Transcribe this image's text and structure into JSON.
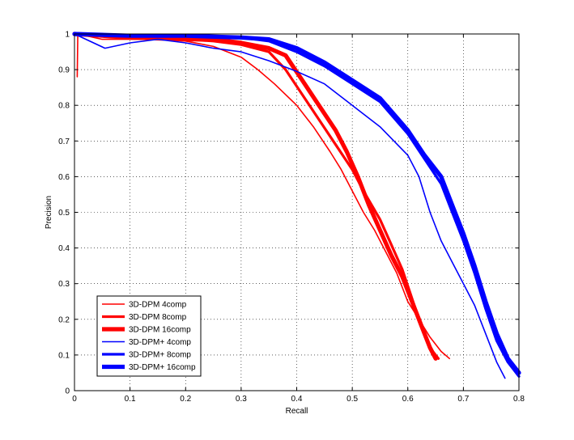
{
  "chart_data": {
    "type": "line",
    "xlabel": "Recall",
    "ylabel": "Precision",
    "xlim": [
      0,
      0.8
    ],
    "ylim": [
      0,
      1
    ],
    "grid": true,
    "legend_position": "bottom-left",
    "x_ticks": [
      "0",
      "0.1",
      "0.2",
      "0.3",
      "0.4",
      "0.5",
      "0.6",
      "0.7",
      "0.8"
    ],
    "y_ticks": [
      "0",
      "0.1",
      "0.2",
      "0.3",
      "0.4",
      "0.5",
      "0.6",
      "0.7",
      "0.8",
      "0.9",
      "1"
    ],
    "series": [
      {
        "name": "3D-DPM 4comp",
        "color": "#ff0000",
        "weight": "thin",
        "points": [
          [
            0.005,
            0.88
          ],
          [
            0.006,
            1.0
          ],
          [
            0.05,
            0.985
          ],
          [
            0.1,
            0.985
          ],
          [
            0.15,
            0.985
          ],
          [
            0.2,
            0.98
          ],
          [
            0.25,
            0.965
          ],
          [
            0.3,
            0.935
          ],
          [
            0.33,
            0.9
          ],
          [
            0.36,
            0.86
          ],
          [
            0.4,
            0.8
          ],
          [
            0.43,
            0.74
          ],
          [
            0.46,
            0.67
          ],
          [
            0.48,
            0.62
          ],
          [
            0.5,
            0.56
          ],
          [
            0.52,
            0.5
          ],
          [
            0.54,
            0.45
          ],
          [
            0.56,
            0.39
          ],
          [
            0.58,
            0.33
          ],
          [
            0.6,
            0.25
          ],
          [
            0.62,
            0.2
          ],
          [
            0.64,
            0.15
          ],
          [
            0.66,
            0.11
          ],
          [
            0.675,
            0.09
          ]
        ]
      },
      {
        "name": "3D-DPM 8comp",
        "color": "#ff0000",
        "weight": "medium",
        "points": [
          [
            0.0,
            1.0
          ],
          [
            0.1,
            0.99
          ],
          [
            0.2,
            0.985
          ],
          [
            0.25,
            0.98
          ],
          [
            0.3,
            0.97
          ],
          [
            0.35,
            0.95
          ],
          [
            0.38,
            0.9
          ],
          [
            0.41,
            0.83
          ],
          [
            0.44,
            0.76
          ],
          [
            0.47,
            0.69
          ],
          [
            0.5,
            0.62
          ],
          [
            0.52,
            0.56
          ],
          [
            0.55,
            0.48
          ],
          [
            0.57,
            0.41
          ],
          [
            0.59,
            0.34
          ],
          [
            0.605,
            0.27
          ],
          [
            0.62,
            0.2
          ],
          [
            0.635,
            0.14
          ],
          [
            0.645,
            0.11
          ],
          [
            0.655,
            0.09
          ]
        ]
      },
      {
        "name": "3D-DPM 16comp",
        "color": "#ff0000",
        "weight": "thick",
        "points": [
          [
            0.0,
            1.0
          ],
          [
            0.1,
            0.99
          ],
          [
            0.2,
            0.985
          ],
          [
            0.25,
            0.985
          ],
          [
            0.3,
            0.975
          ],
          [
            0.35,
            0.96
          ],
          [
            0.38,
            0.94
          ],
          [
            0.41,
            0.87
          ],
          [
            0.44,
            0.8
          ],
          [
            0.47,
            0.73
          ],
          [
            0.49,
            0.67
          ],
          [
            0.51,
            0.6
          ],
          [
            0.53,
            0.52
          ],
          [
            0.55,
            0.45
          ],
          [
            0.57,
            0.38
          ],
          [
            0.59,
            0.32
          ],
          [
            0.61,
            0.24
          ],
          [
            0.63,
            0.16
          ],
          [
            0.64,
            0.12
          ],
          [
            0.65,
            0.09
          ]
        ]
      },
      {
        "name": "3D-DPM+ 4comp",
        "color": "#0000ff",
        "weight": "thin",
        "points": [
          [
            0.0,
            1.0
          ],
          [
            0.055,
            0.96
          ],
          [
            0.1,
            0.975
          ],
          [
            0.15,
            0.985
          ],
          [
            0.2,
            0.975
          ],
          [
            0.25,
            0.96
          ],
          [
            0.3,
            0.95
          ],
          [
            0.35,
            0.925
          ],
          [
            0.4,
            0.895
          ],
          [
            0.45,
            0.86
          ],
          [
            0.5,
            0.8
          ],
          [
            0.55,
            0.74
          ],
          [
            0.6,
            0.66
          ],
          [
            0.62,
            0.6
          ],
          [
            0.64,
            0.5
          ],
          [
            0.66,
            0.42
          ],
          [
            0.68,
            0.36
          ],
          [
            0.7,
            0.3
          ],
          [
            0.72,
            0.24
          ],
          [
            0.74,
            0.16
          ],
          [
            0.76,
            0.08
          ],
          [
            0.775,
            0.035
          ]
        ]
      },
      {
        "name": "3D-DPM+ 8comp",
        "color": "#0000ff",
        "weight": "medium",
        "points": [
          [
            0.0,
            1.0
          ],
          [
            0.1,
            0.995
          ],
          [
            0.2,
            0.995
          ],
          [
            0.3,
            0.99
          ],
          [
            0.35,
            0.98
          ],
          [
            0.4,
            0.95
          ],
          [
            0.45,
            0.91
          ],
          [
            0.5,
            0.86
          ],
          [
            0.55,
            0.81
          ],
          [
            0.6,
            0.72
          ],
          [
            0.63,
            0.65
          ],
          [
            0.66,
            0.58
          ],
          [
            0.68,
            0.5
          ],
          [
            0.7,
            0.42
          ],
          [
            0.72,
            0.33
          ],
          [
            0.74,
            0.23
          ],
          [
            0.76,
            0.14
          ],
          [
            0.78,
            0.08
          ],
          [
            0.8,
            0.04
          ]
        ]
      },
      {
        "name": "3D-DPM+ 16comp",
        "color": "#0000ff",
        "weight": "thick",
        "points": [
          [
            0.0,
            1.0
          ],
          [
            0.1,
            0.995
          ],
          [
            0.2,
            0.995
          ],
          [
            0.3,
            0.99
          ],
          [
            0.35,
            0.985
          ],
          [
            0.4,
            0.96
          ],
          [
            0.45,
            0.92
          ],
          [
            0.5,
            0.87
          ],
          [
            0.55,
            0.82
          ],
          [
            0.6,
            0.73
          ],
          [
            0.63,
            0.66
          ],
          [
            0.66,
            0.6
          ],
          [
            0.68,
            0.52
          ],
          [
            0.7,
            0.44
          ],
          [
            0.72,
            0.35
          ],
          [
            0.74,
            0.25
          ],
          [
            0.76,
            0.16
          ],
          [
            0.78,
            0.09
          ],
          [
            0.8,
            0.05
          ]
        ]
      }
    ]
  }
}
